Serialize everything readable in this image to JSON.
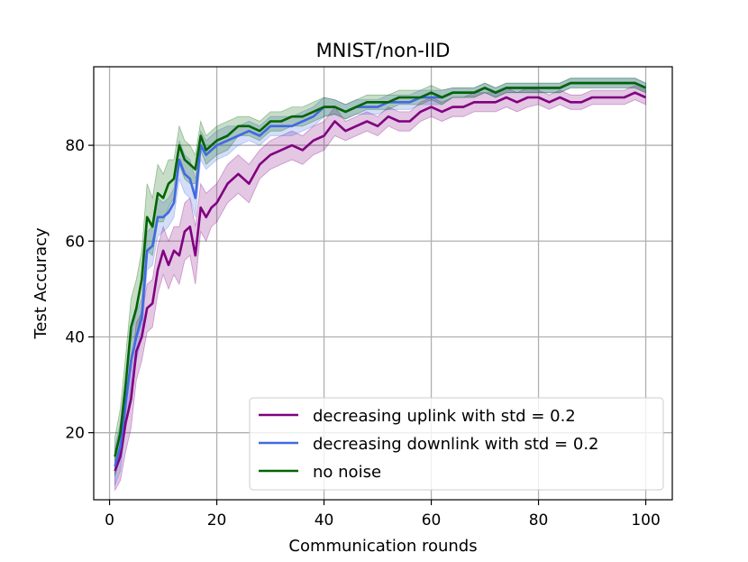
{
  "chart_data": {
    "type": "line",
    "title": "MNIST/non-IID",
    "xlabel": "Communication rounds",
    "ylabel": "Test Accuracy",
    "xlim": [
      -2.95,
      104.95
    ],
    "ylim": [
      6.0,
      96.4
    ],
    "xticks": [
      0,
      20,
      40,
      60,
      80,
      100
    ],
    "yticks": [
      20,
      40,
      60,
      80
    ],
    "grid": true,
    "legend_position": "lower-right",
    "series": [
      {
        "name": "decreasing uplink with std = 0.2",
        "color": "#800080",
        "x": [
          1,
          2,
          3,
          4,
          5,
          6,
          7,
          8,
          9,
          10,
          11,
          12,
          13,
          14,
          15,
          16,
          17,
          18,
          19,
          20,
          22,
          24,
          26,
          28,
          30,
          32,
          34,
          36,
          38,
          40,
          42,
          44,
          46,
          48,
          50,
          52,
          54,
          56,
          58,
          60,
          62,
          64,
          66,
          68,
          70,
          72,
          74,
          76,
          78,
          80,
          82,
          84,
          86,
          88,
          90,
          92,
          94,
          96,
          98,
          100
        ],
        "y": [
          12,
          15,
          22,
          27,
          37,
          40,
          46,
          47,
          54,
          58,
          55,
          58,
          57,
          62,
          63,
          57,
          67,
          65,
          67,
          68,
          72,
          74,
          72,
          76,
          78,
          79,
          80,
          79,
          81,
          82,
          85,
          83,
          84,
          85,
          84,
          86,
          85,
          85,
          87,
          88,
          87,
          88,
          88,
          89,
          89,
          89,
          90,
          89,
          90,
          90,
          89,
          90,
          89,
          89,
          90,
          90,
          90,
          90,
          91,
          90
        ],
        "band": [
          4,
          5,
          6,
          6,
          6,
          5,
          5,
          5,
          5,
          5,
          5,
          5,
          6,
          6,
          6,
          6,
          5,
          5,
          4,
          4,
          4,
          4,
          4,
          3,
          3,
          3,
          3,
          3,
          3,
          3,
          3,
          2,
          2,
          2,
          2,
          2,
          2,
          2,
          2,
          2,
          2,
          2,
          2,
          2,
          2,
          2,
          2,
          2,
          2,
          1.5,
          1.5,
          1.5,
          1.5,
          1.5,
          1.5,
          1.5,
          1.5,
          1.5,
          1.5,
          1.5
        ]
      },
      {
        "name": "decreasing downlink with std = 0.2",
        "color": "#4169e1",
        "x": [
          1,
          2,
          3,
          4,
          5,
          6,
          7,
          8,
          9,
          10,
          11,
          12,
          13,
          14,
          15,
          16,
          17,
          18,
          19,
          20,
          22,
          24,
          26,
          28,
          30,
          32,
          34,
          36,
          38,
          40,
          42,
          44,
          46,
          48,
          50,
          52,
          54,
          56,
          58,
          60,
          62,
          64,
          66,
          68,
          70,
          72,
          74,
          76,
          78,
          80,
          82,
          84,
          86,
          88,
          90,
          92,
          94,
          96,
          98,
          100
        ],
        "y": [
          13,
          17,
          26,
          35,
          40,
          44,
          58,
          59,
          65,
          65,
          66,
          68,
          77,
          74,
          73,
          69,
          80,
          78,
          79,
          80,
          81,
          82,
          83,
          82,
          84,
          84,
          84,
          85,
          86,
          88,
          88,
          87,
          88,
          88,
          88,
          89,
          89,
          89,
          90,
          90,
          90,
          91,
          91,
          91,
          92,
          91,
          92,
          92,
          92,
          92,
          92,
          92,
          93,
          93,
          93,
          93,
          93,
          93,
          93,
          92
        ],
        "band": [
          4,
          5,
          5,
          5,
          5,
          4,
          4,
          4,
          4,
          3,
          3,
          3,
          4,
          4,
          4,
          4,
          3,
          3,
          3,
          3,
          3,
          2,
          2,
          2,
          2,
          2,
          2,
          2,
          2,
          2,
          1.5,
          1.5,
          1.5,
          1.5,
          1.5,
          1.5,
          1.5,
          1.5,
          1.5,
          1.5,
          1.5,
          1,
          1,
          1,
          1,
          1,
          1,
          1,
          1,
          1,
          1,
          1,
          1,
          1,
          1,
          1,
          1,
          1,
          1,
          1
        ]
      },
      {
        "name": "no noise",
        "color": "#006400",
        "x": [
          1,
          2,
          3,
          4,
          5,
          6,
          7,
          8,
          9,
          10,
          11,
          12,
          13,
          14,
          15,
          16,
          17,
          18,
          19,
          20,
          22,
          24,
          26,
          28,
          30,
          32,
          34,
          36,
          38,
          40,
          42,
          44,
          46,
          48,
          50,
          52,
          54,
          56,
          58,
          60,
          62,
          64,
          66,
          68,
          70,
          72,
          74,
          76,
          78,
          80,
          82,
          84,
          86,
          88,
          90,
          92,
          94,
          96,
          98,
          100
        ],
        "y": [
          15,
          20,
          30,
          42,
          46,
          52,
          65,
          63,
          70,
          69,
          72,
          73,
          80,
          77,
          76,
          75,
          82,
          79,
          80,
          81,
          82,
          84,
          84,
          83,
          85,
          85,
          86,
          86,
          87,
          88,
          88,
          87,
          88,
          89,
          89,
          89,
          90,
          90,
          90,
          91,
          90,
          91,
          91,
          91,
          92,
          91,
          92,
          92,
          92,
          92,
          92,
          92,
          93,
          93,
          93,
          93,
          93,
          93,
          93,
          92
        ],
        "band": [
          4,
          5,
          6,
          6,
          6,
          6,
          7,
          6,
          6,
          5,
          5,
          4,
          4,
          4,
          4,
          3,
          3,
          3,
          3,
          3,
          3,
          2,
          2,
          2,
          2,
          2,
          2,
          2,
          2,
          2,
          1.5,
          1.5,
          1.5,
          1.5,
          1.5,
          1.5,
          1.5,
          1.5,
          1.5,
          1.5,
          1.5,
          1,
          1,
          1,
          1,
          1,
          1,
          1,
          1,
          1,
          1,
          1,
          1,
          1,
          1,
          1,
          1,
          1,
          1,
          1
        ]
      }
    ]
  }
}
